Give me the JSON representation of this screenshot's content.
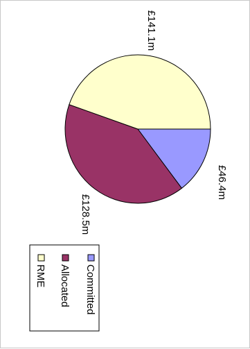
{
  "chart_data": {
    "type": "pie",
    "title": "",
    "orientation": "rotated 90 degrees clockwise",
    "legend_position": "lower-left",
    "slices": [
      {
        "name": "Committed",
        "value": 46.4,
        "label": "£46.4m",
        "color": "#9999ff"
      },
      {
        "name": "Allocated",
        "value": 128.5,
        "label": "£128.5m",
        "color": "#993366"
      },
      {
        "name": "RME",
        "value": 141.1,
        "label": "£141.1m",
        "color": "#ffffcc"
      }
    ]
  }
}
